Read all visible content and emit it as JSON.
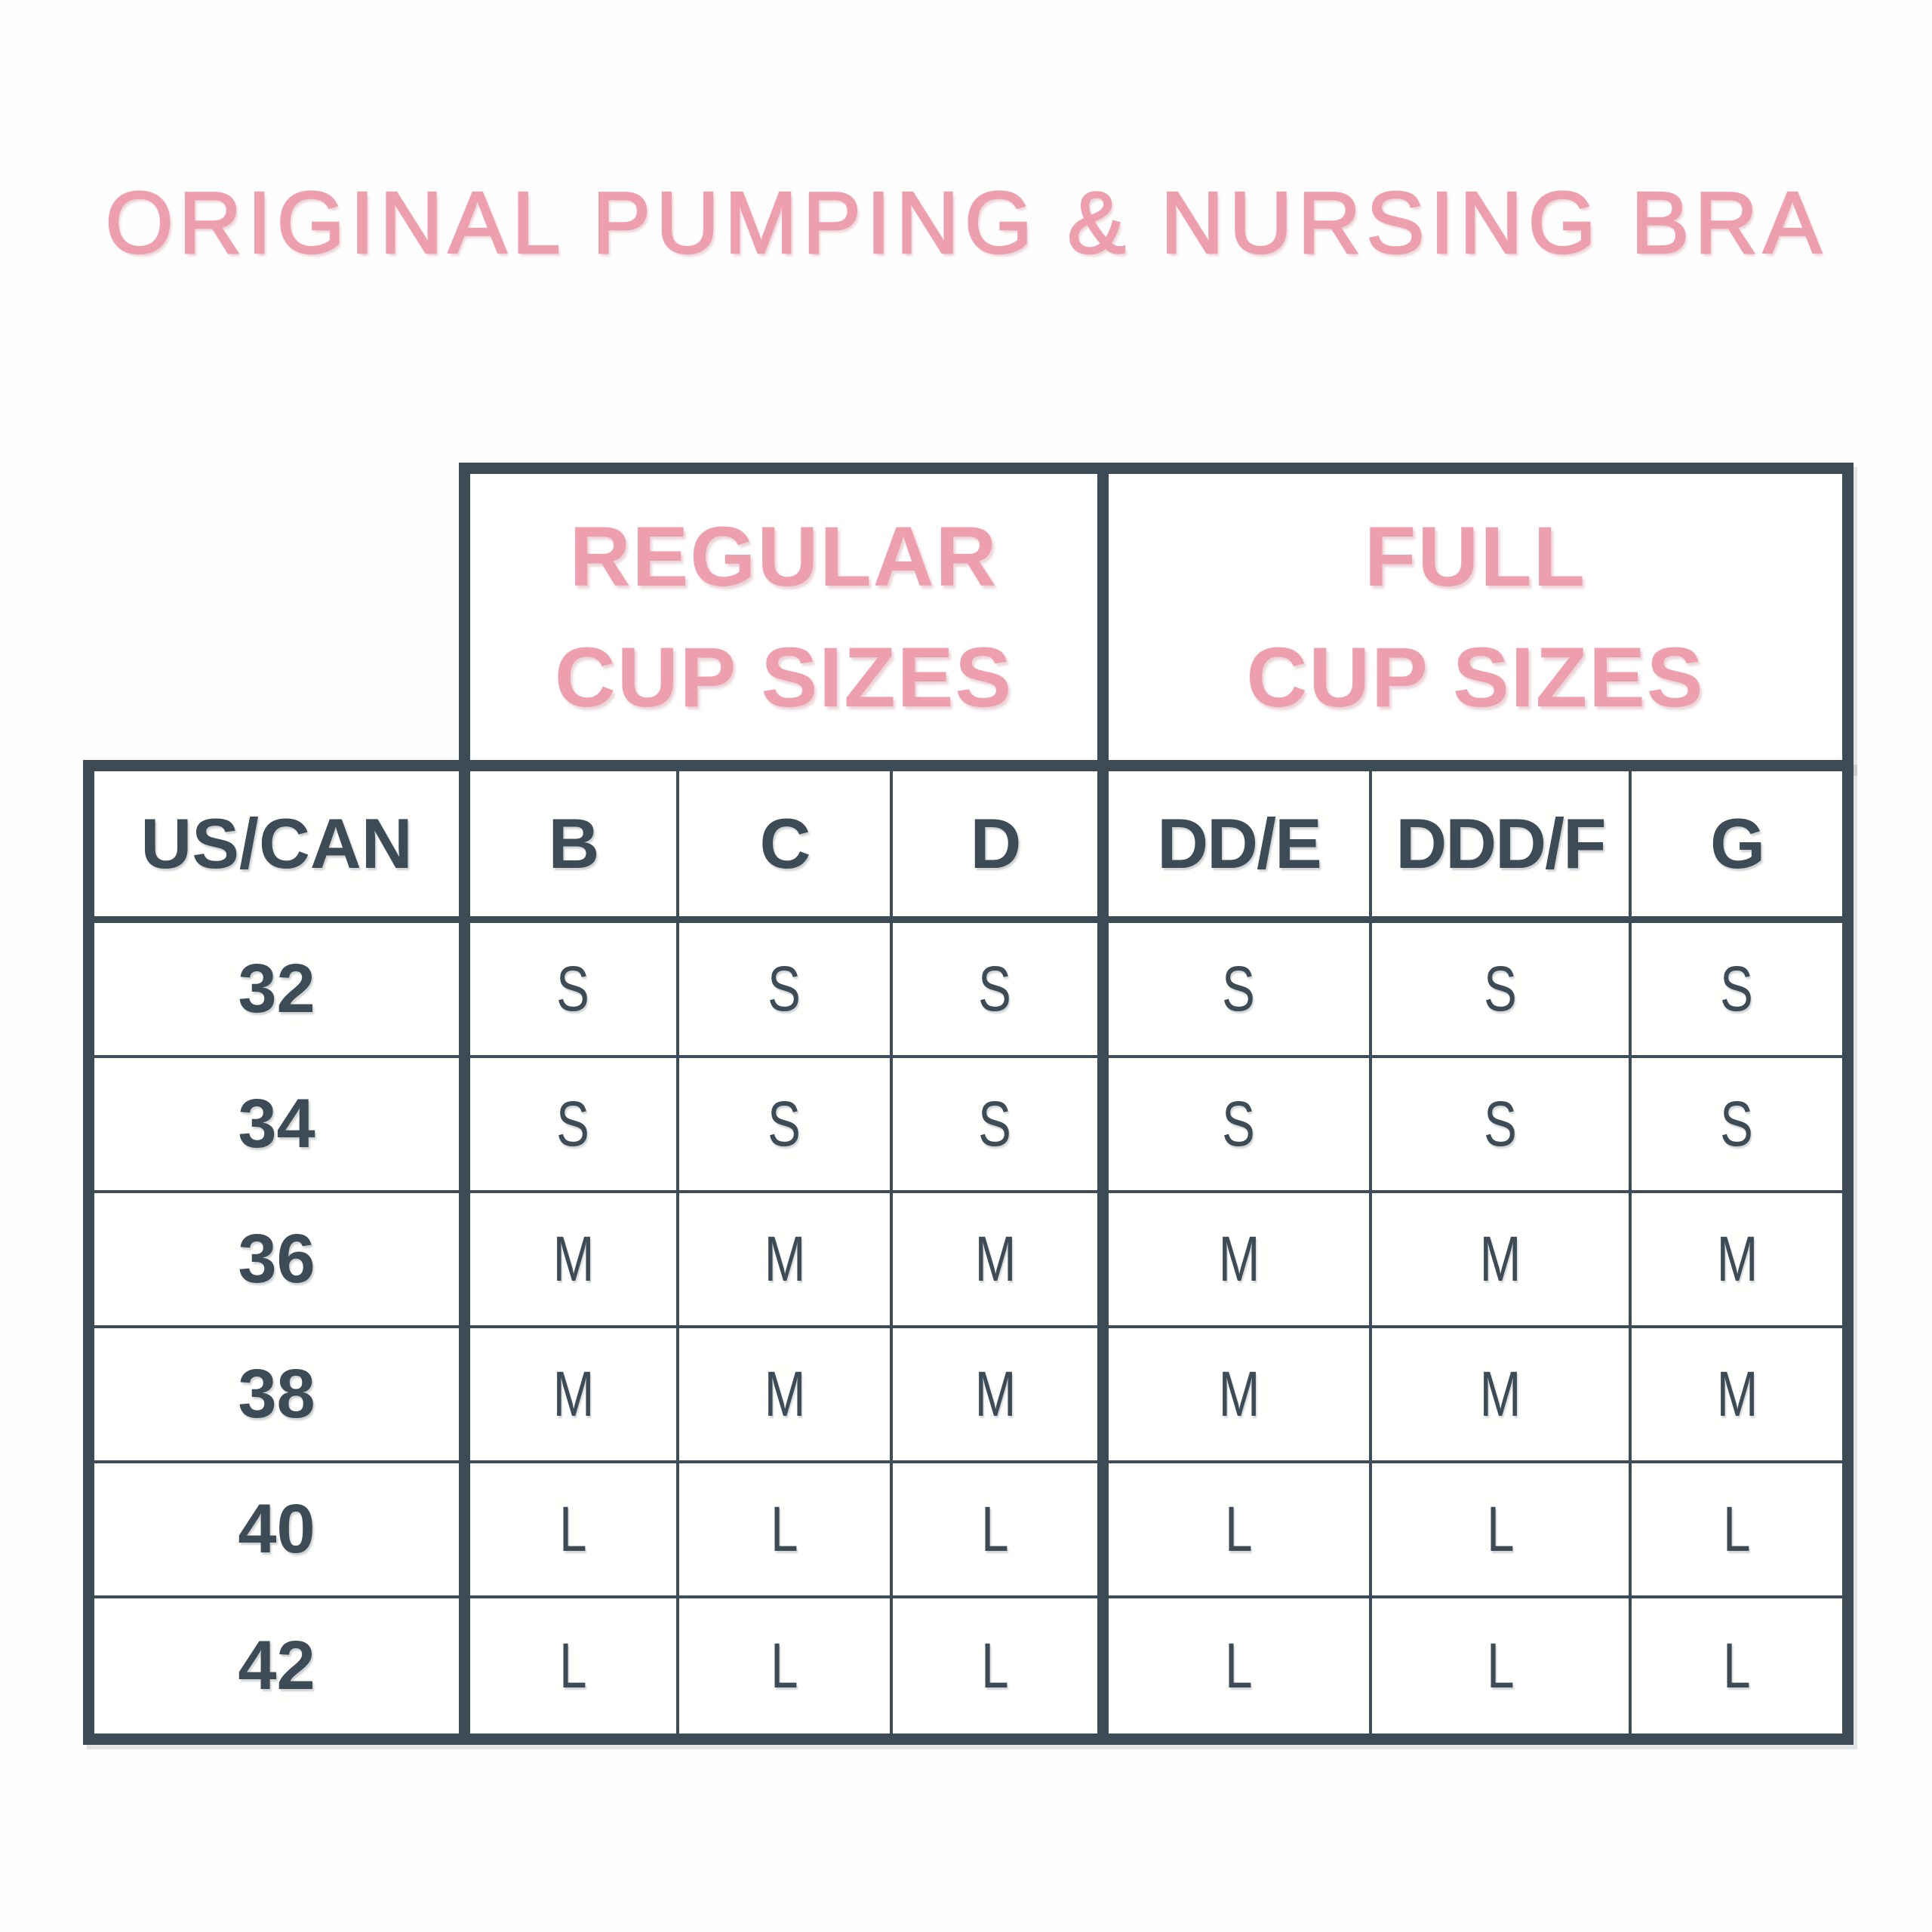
{
  "title": "ORIGINAL PUMPING & NURSING BRA",
  "colors": {
    "pink": "#EE9FAE",
    "slate": "#3C4B55",
    "background": "#FFFFFF"
  },
  "header_groups": [
    {
      "line1": "REGULAR",
      "line2": "CUP SIZES"
    },
    {
      "line1": "FULL",
      "line2": "CUP SIZES"
    }
  ],
  "table": {
    "corner_header": "US/CAN",
    "columns": [
      "B",
      "C",
      "D",
      "DD/E",
      "DDD/F",
      "G"
    ],
    "rows": [
      {
        "band": "32",
        "values": [
          "S",
          "S",
          "S",
          "S",
          "S",
          "S"
        ]
      },
      {
        "band": "34",
        "values": [
          "S",
          "S",
          "S",
          "S",
          "S",
          "S"
        ]
      },
      {
        "band": "36",
        "values": [
          "M",
          "M",
          "M",
          "M",
          "M",
          "M"
        ]
      },
      {
        "band": "38",
        "values": [
          "M",
          "M",
          "M",
          "M",
          "M",
          "M"
        ]
      },
      {
        "band": "40",
        "values": [
          "L",
          "L",
          "L",
          "L",
          "L",
          "L"
        ]
      },
      {
        "band": "42",
        "values": [
          "L",
          "L",
          "L",
          "L",
          "L",
          "L"
        ]
      }
    ]
  },
  "chart_data": {
    "type": "table",
    "title": "ORIGINAL PUMPING & NURSING BRA",
    "column_groups": [
      {
        "label": "REGULAR CUP SIZES",
        "columns": [
          "B",
          "C",
          "D"
        ]
      },
      {
        "label": "FULL CUP SIZES",
        "columns": [
          "DD/E",
          "DDD/F",
          "G"
        ]
      }
    ],
    "columns": [
      "US/CAN",
      "B",
      "C",
      "D",
      "DD/E",
      "DDD/F",
      "G"
    ],
    "rows": [
      [
        "32",
        "S",
        "S",
        "S",
        "S",
        "S",
        "S"
      ],
      [
        "34",
        "S",
        "S",
        "S",
        "S",
        "S",
        "S"
      ],
      [
        "36",
        "M",
        "M",
        "M",
        "M",
        "M",
        "M"
      ],
      [
        "38",
        "M",
        "M",
        "M",
        "M",
        "M",
        "M"
      ],
      [
        "40",
        "L",
        "L",
        "L",
        "L",
        "L",
        "L"
      ],
      [
        "42",
        "L",
        "L",
        "L",
        "L",
        "L",
        "L"
      ]
    ]
  }
}
